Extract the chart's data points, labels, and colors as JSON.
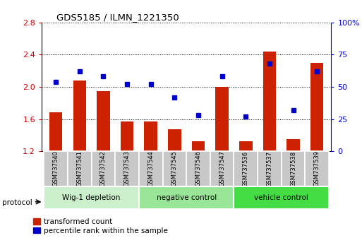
{
  "title": "GDS5185 / ILMN_1221350",
  "samples": [
    "GSM737540",
    "GSM737541",
    "GSM737542",
    "GSM737543",
    "GSM737544",
    "GSM737545",
    "GSM737546",
    "GSM737547",
    "GSM737536",
    "GSM737537",
    "GSM737538",
    "GSM737539"
  ],
  "red_bars": [
    1.68,
    2.08,
    1.95,
    1.57,
    1.57,
    1.47,
    1.32,
    2.0,
    1.32,
    2.44,
    1.35,
    2.3
  ],
  "blue_dots": [
    54,
    62,
    58,
    52,
    52,
    42,
    28,
    58,
    27,
    68,
    32,
    62
  ],
  "groups": [
    {
      "label": "Wig-1 depletion",
      "start": 0,
      "end": 4,
      "color": "#ccf0cc"
    },
    {
      "label": "negative control",
      "start": 4,
      "end": 8,
      "color": "#99e699"
    },
    {
      "label": "vehicle control",
      "start": 8,
      "end": 12,
      "color": "#44dd44"
    }
  ],
  "ylim_left": [
    1.2,
    2.8
  ],
  "ylim_right": [
    0,
    100
  ],
  "yticks_left": [
    1.2,
    1.6,
    2.0,
    2.4,
    2.8
  ],
  "yticks_right": [
    0,
    25,
    50,
    75,
    100
  ],
  "ytick_right_labels": [
    "0",
    "25",
    "50",
    "75",
    "100%"
  ],
  "ylabel_left_color": "#cc0000",
  "ylabel_right_color": "#0000cc",
  "bar_color": "#cc2200",
  "dot_color": "#0000cc",
  "sample_box_color": "#c8c8c8",
  "legend_red_label": "transformed count",
  "legend_blue_label": "percentile rank within the sample",
  "protocol_label": "protocol"
}
